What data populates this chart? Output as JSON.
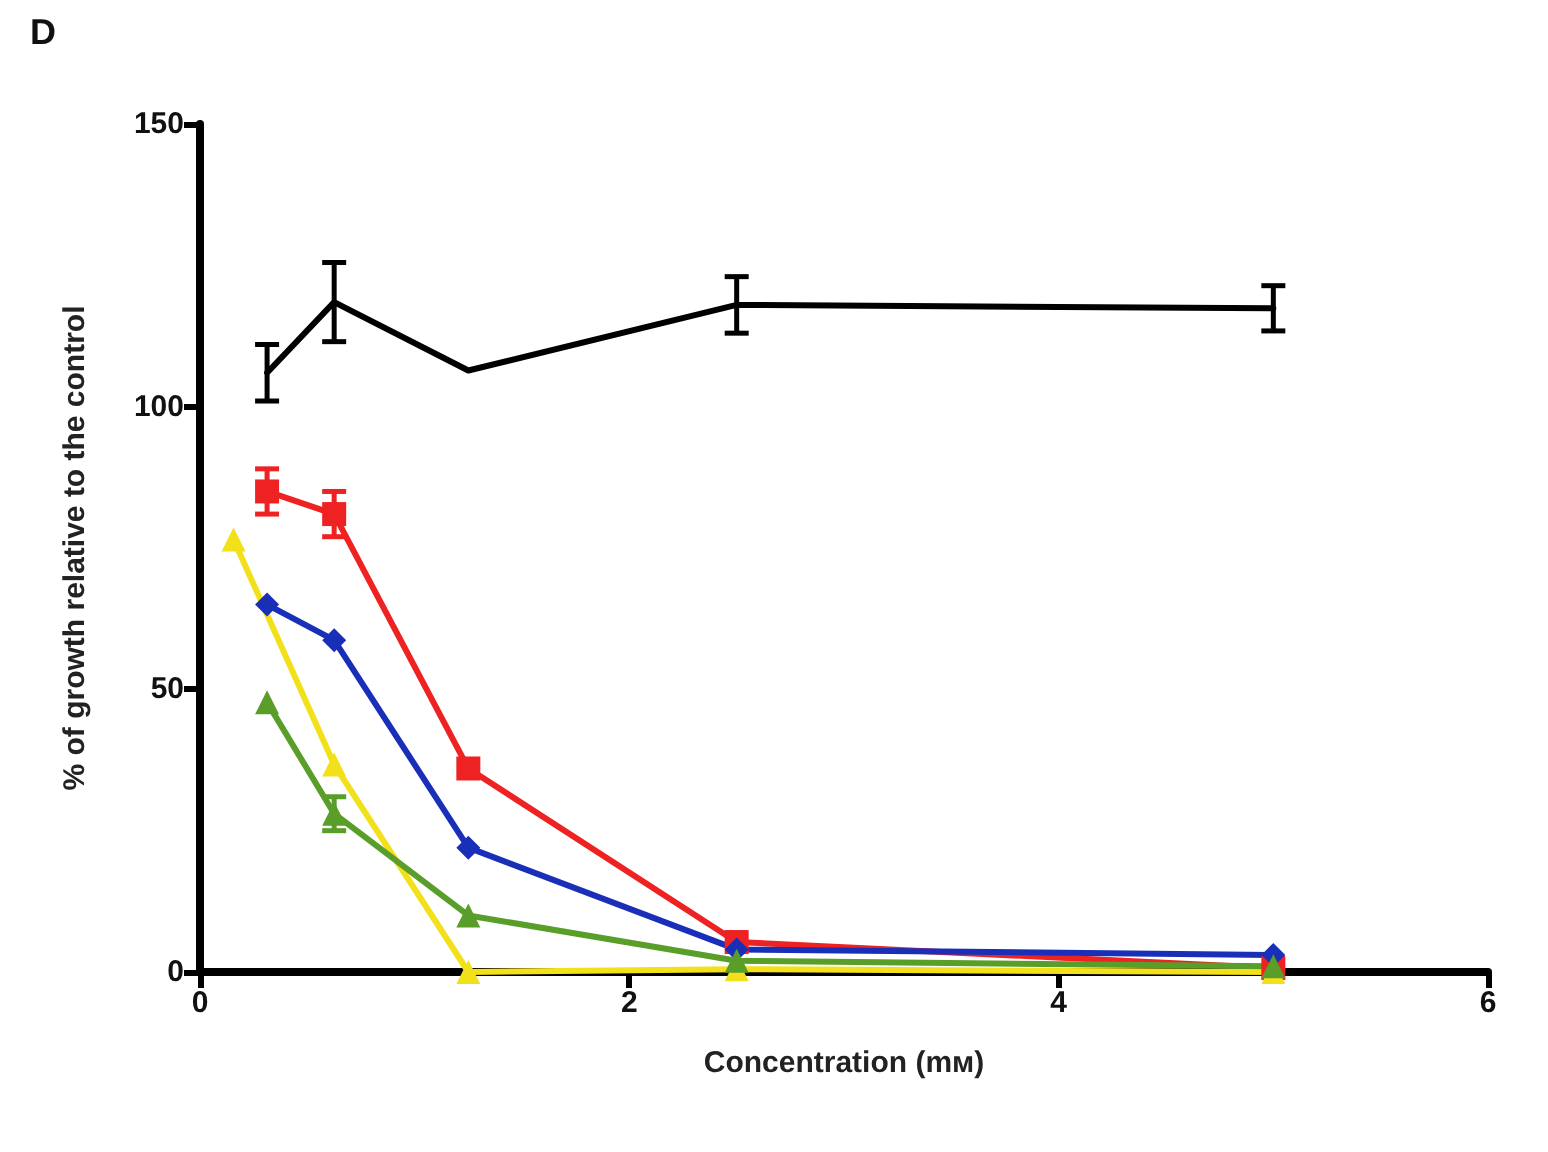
{
  "chart_data": {
    "type": "line",
    "title": "D",
    "xlabel": "Concentration (mм)",
    "ylabel": "% of growth relative to the control",
    "xlim": [
      0,
      6
    ],
    "xticks": [
      0,
      2,
      4,
      6
    ],
    "ylim": [
      0,
      150
    ],
    "yticks": [
      0,
      50,
      100,
      150
    ],
    "line_style": "solid",
    "series": [
      {
        "color": "#000000",
        "marker": "none",
        "x": [
          0.3125,
          0.625,
          1.25,
          2.5,
          5
        ],
        "values": [
          106,
          118.5,
          106.4,
          118,
          117.4
        ],
        "errors": [
          5,
          7,
          null,
          5,
          4
        ]
      },
      {
        "color": "#ee2222",
        "marker": "square",
        "x": [
          0.3125,
          0.625,
          1.25,
          2.5,
          5
        ],
        "values": [
          85,
          81,
          36,
          5.3,
          0.7
        ],
        "errors": [
          4,
          4,
          null,
          null,
          null
        ]
      },
      {
        "color": "#1a2fb8",
        "marker": "diamond",
        "x": [
          0.3125,
          0.625,
          1.25,
          2.5,
          5
        ],
        "values": [
          65,
          58.7,
          22,
          4,
          3
        ]
      },
      {
        "color": "#f2e01a",
        "marker": "triangle",
        "x": [
          0.15625,
          0.625,
          1.25,
          2.5,
          5
        ],
        "values": [
          76.5,
          36.7,
          0,
          0.5,
          0
        ]
      },
      {
        "color": "#5a9e2a",
        "marker": "triangle",
        "x": [
          0.3125,
          0.625,
          1.25,
          2.5,
          5
        ],
        "values": [
          47.7,
          28,
          10,
          2,
          1
        ],
        "errors": [
          null,
          3,
          null,
          null,
          null
        ]
      }
    ]
  }
}
